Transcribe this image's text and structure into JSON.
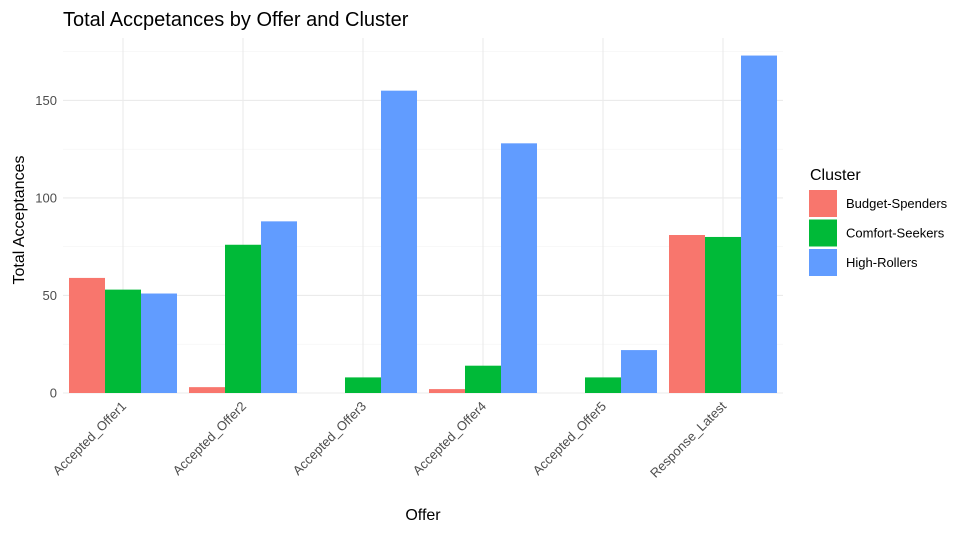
{
  "chart_data": {
    "type": "bar",
    "title": "Total Accpetances by Offer and Cluster",
    "xlabel": "Offer",
    "ylabel": "Total Acceptances",
    "categories": [
      "Accepted_Offer1",
      "Accepted_Offer2",
      "Accepted_Offer3",
      "Accepted_Offer4",
      "Accepted_Offer5",
      "Response_Latest"
    ],
    "series": [
      {
        "name": "Budget-Spenders",
        "color": "#F8766D",
        "values": [
          59,
          3,
          0,
          2,
          0,
          81
        ]
      },
      {
        "name": "Comfort-Seekers",
        "color": "#00BA38",
        "values": [
          53,
          76,
          8,
          14,
          8,
          80
        ]
      },
      {
        "name": "High-Rollers",
        "color": "#619CFF",
        "values": [
          51,
          88,
          155,
          128,
          22,
          173
        ]
      }
    ],
    "ylim": [
      0,
      182
    ],
    "yticks": [
      0,
      50,
      100,
      150
    ],
    "grid": true,
    "legend": {
      "title": "Cluster",
      "position": "right"
    }
  }
}
